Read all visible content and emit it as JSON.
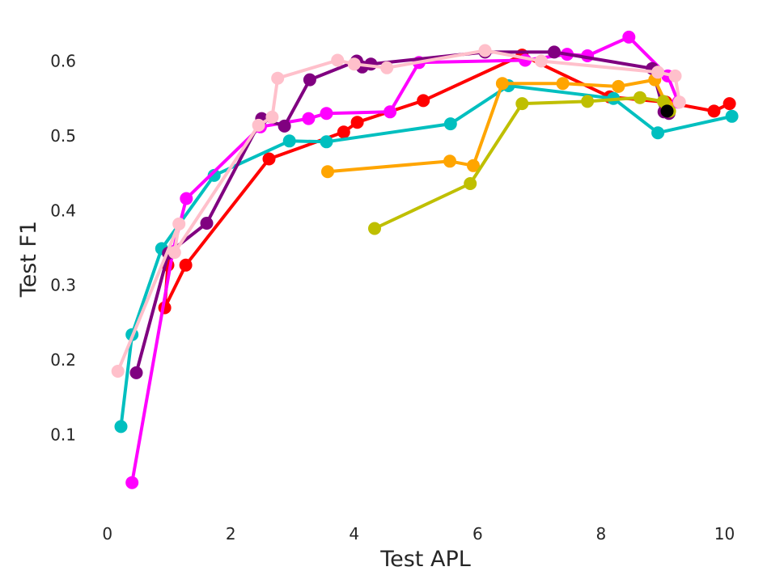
{
  "chart_data": {
    "type": "line",
    "title": "",
    "xlabel": "Test APL",
    "ylabel": "Test F1",
    "xlim": [
      -0.35,
      10.4
    ],
    "ylim": [
      0.0,
      0.66
    ],
    "xticks": [
      0,
      2,
      4,
      6,
      8,
      10
    ],
    "yticks": [
      0.1,
      0.2,
      0.3,
      0.4,
      0.5,
      0.6
    ],
    "grid": false,
    "series": [
      {
        "color": "#ff0000",
        "points": [
          [
            0.98,
            0.327
          ],
          [
            0.93,
            0.27
          ],
          [
            1.27,
            0.327
          ],
          [
            2.62,
            0.469
          ],
          [
            3.83,
            0.505
          ],
          [
            4.05,
            0.518
          ],
          [
            5.12,
            0.547
          ],
          [
            6.72,
            0.608
          ],
          [
            8.14,
            0.552
          ],
          [
            9.05,
            0.545
          ],
          [
            9.83,
            0.533
          ],
          [
            10.08,
            0.543
          ]
        ]
      },
      {
        "color": "#00bfbf",
        "points": [
          [
            0.22,
            0.111
          ],
          [
            0.4,
            0.234
          ],
          [
            0.88,
            0.349
          ],
          [
            1.73,
            0.447
          ],
          [
            2.95,
            0.493
          ],
          [
            3.55,
            0.492
          ],
          [
            5.56,
            0.516
          ],
          [
            6.5,
            0.567
          ],
          [
            8.2,
            0.55
          ],
          [
            8.92,
            0.504
          ],
          [
            10.12,
            0.526
          ]
        ]
      },
      {
        "color": "#ff00ff",
        "points": [
          [
            0.4,
            0.036
          ],
          [
            1.06,
            0.345
          ],
          [
            1.28,
            0.416
          ],
          [
            2.48,
            0.512
          ],
          [
            3.26,
            0.523
          ],
          [
            3.55,
            0.53
          ],
          [
            4.58,
            0.532
          ],
          [
            5.05,
            0.598
          ],
          [
            6.77,
            0.601
          ],
          [
            7.45,
            0.609
          ],
          [
            7.78,
            0.607
          ],
          [
            8.45,
            0.632
          ],
          [
            9.08,
            0.58
          ],
          [
            9.25,
            0.545
          ]
        ]
      },
      {
        "color": "#800080",
        "points": [
          [
            0.47,
            0.183
          ],
          [
            0.99,
            0.343
          ],
          [
            1.61,
            0.383
          ],
          [
            2.5,
            0.523
          ],
          [
            2.87,
            0.513
          ],
          [
            3.28,
            0.575
          ],
          [
            4.04,
            0.6
          ],
          [
            4.13,
            0.592
          ],
          [
            4.27,
            0.596
          ],
          [
            6.12,
            0.612
          ],
          [
            7.24,
            0.612
          ],
          [
            8.83,
            0.59
          ],
          [
            9.02,
            0.532
          ],
          [
            9.1,
            0.53
          ],
          [
            9.03,
            0.543
          ]
        ]
      },
      {
        "color": "#ffa500",
        "points": [
          [
            3.57,
            0.452
          ],
          [
            5.55,
            0.466
          ],
          [
            5.93,
            0.46
          ],
          [
            6.4,
            0.57
          ],
          [
            7.38,
            0.57
          ],
          [
            8.28,
            0.566
          ],
          [
            8.87,
            0.575
          ],
          [
            9.07,
            0.54
          ]
        ]
      },
      {
        "color": "#bfbf00",
        "points": [
          [
            4.33,
            0.376
          ],
          [
            5.88,
            0.436
          ],
          [
            6.72,
            0.543
          ],
          [
            7.78,
            0.546
          ],
          [
            8.63,
            0.551
          ],
          [
            9.01,
            0.546
          ],
          [
            9.11,
            0.533
          ]
        ]
      },
      {
        "color": "#000000",
        "points": [
          [
            9.07,
            0.533
          ]
        ]
      },
      {
        "color": "#ffc0cb",
        "points": [
          [
            0.17,
            0.185
          ],
          [
            1.16,
            0.382
          ],
          [
            1.09,
            0.344
          ],
          [
            2.45,
            0.514
          ],
          [
            2.67,
            0.525
          ],
          [
            2.76,
            0.577
          ],
          [
            3.73,
            0.601
          ],
          [
            4.0,
            0.596
          ],
          [
            4.53,
            0.591
          ],
          [
            6.12,
            0.614
          ],
          [
            7.03,
            0.6
          ],
          [
            8.92,
            0.585
          ],
          [
            9.2,
            0.58
          ],
          [
            9.27,
            0.545
          ]
        ]
      }
    ]
  }
}
